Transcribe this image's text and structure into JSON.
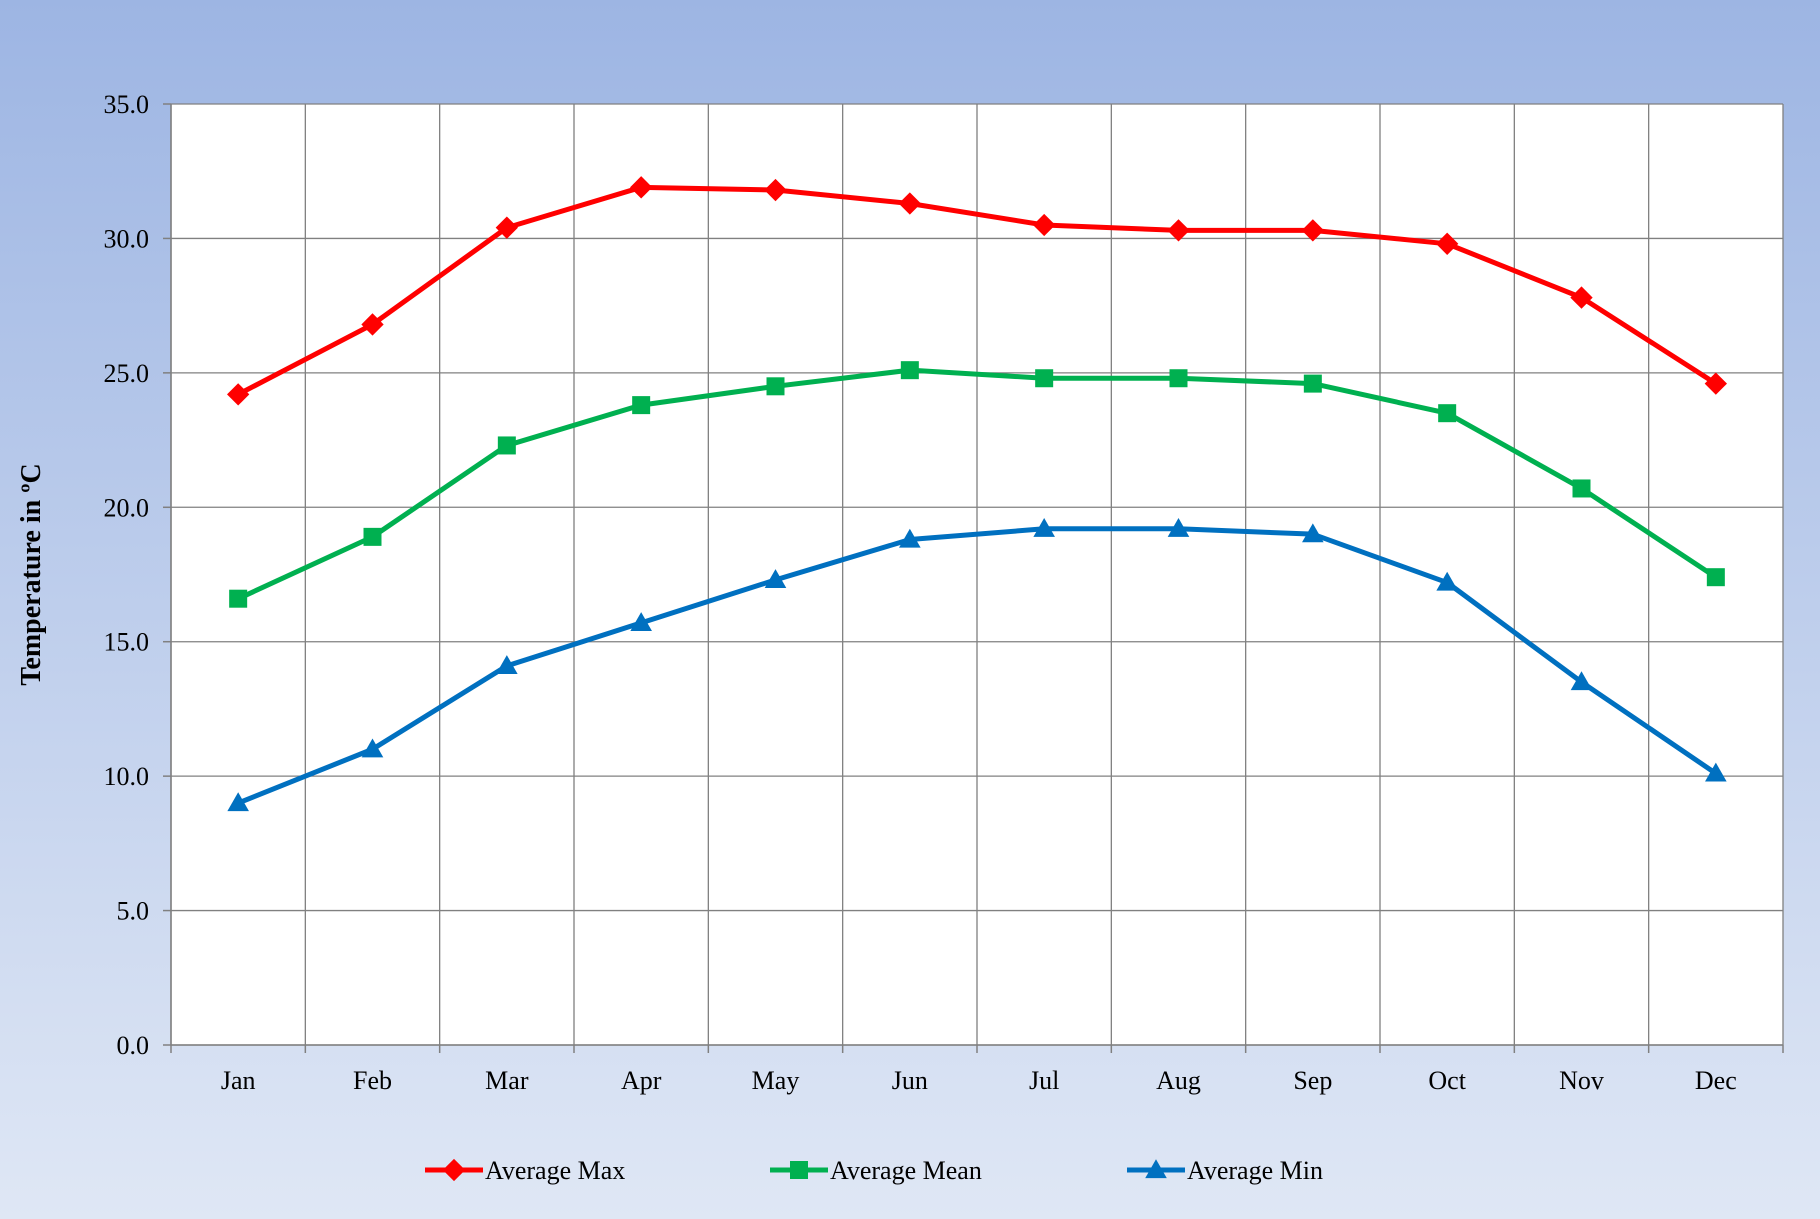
{
  "chart_data": {
    "type": "line",
    "title": "",
    "xlabel": "",
    "ylabel": "Temperature in ºC",
    "ylim": [
      0,
      35
    ],
    "y_ticks": [
      "0.0",
      "5.0",
      "10.0",
      "15.0",
      "20.0",
      "25.0",
      "30.0",
      "35.0"
    ],
    "y_tick_values": [
      0,
      5,
      10,
      15,
      20,
      25,
      30,
      35
    ],
    "categories": [
      "Jan",
      "Feb",
      "Mar",
      "Apr",
      "May",
      "Jun",
      "Jul",
      "Aug",
      "Sep",
      "Oct",
      "Nov",
      "Dec"
    ],
    "grid": true,
    "legend_position": "bottom",
    "series": [
      {
        "name": "Average Max",
        "color": "#ff0000",
        "marker": "diamond",
        "values": [
          24.2,
          26.8,
          30.4,
          31.9,
          31.8,
          31.3,
          30.5,
          30.3,
          30.3,
          29.8,
          27.8,
          24.6
        ]
      },
      {
        "name": "Average Mean",
        "color": "#00b050",
        "marker": "square",
        "values": [
          16.6,
          18.9,
          22.3,
          23.8,
          24.5,
          25.1,
          24.8,
          24.8,
          24.6,
          23.5,
          20.7,
          17.4
        ]
      },
      {
        "name": "Average Min",
        "color": "#0070c0",
        "marker": "triangle",
        "values": [
          9.0,
          11.0,
          14.1,
          15.7,
          17.3,
          18.8,
          19.2,
          19.2,
          19.0,
          17.2,
          13.5,
          10.1
        ]
      }
    ],
    "background_gradient": [
      "#9db5e3",
      "#dfe7f5"
    ],
    "plot_background": "#ffffff",
    "gridline_color": "#808080"
  }
}
